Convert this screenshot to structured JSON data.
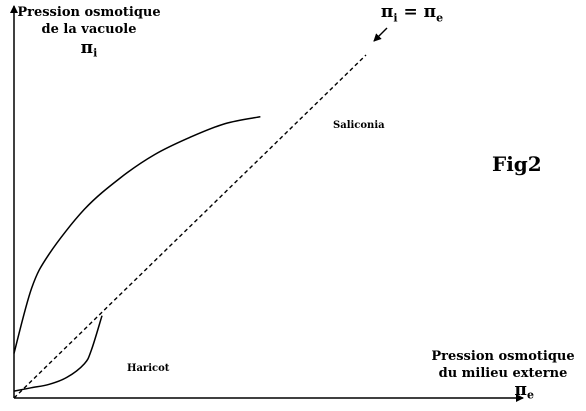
{
  "chart_data": {
    "type": "line",
    "title": "",
    "figure_label": "Fig2",
    "ylabel": {
      "line1": "Pression osmotique",
      "line2": "de la vacuole",
      "symbol": "π",
      "subscript": "i"
    },
    "xlabel": {
      "line1": "Pression osmotique",
      "line2": "du milieu externe",
      "symbol": "π",
      "subscript": "e"
    },
    "reference_line": {
      "label_symbol_left": "π",
      "label_sub_left": "i",
      "label_equals": " = ",
      "label_symbol_right": "π",
      "label_sub_right": "e",
      "style": "dashed",
      "x": [
        0,
        1
      ],
      "y": [
        0,
        1
      ]
    },
    "xlim": [
      0,
      1
    ],
    "ylim": [
      0,
      1
    ],
    "grid": false,
    "series": [
      {
        "name": "Saliconia",
        "x": [
          0,
          0.05,
          0.1,
          0.2,
          0.3,
          0.4,
          0.5,
          0.6,
          0.7
        ],
        "y": [
          0.13,
          0.32,
          0.42,
          0.55,
          0.64,
          0.71,
          0.76,
          0.8,
          0.82
        ]
      },
      {
        "name": "Haricot",
        "x": [
          0,
          0.05,
          0.1,
          0.15,
          0.2,
          0.22,
          0.25
        ],
        "y": [
          0.02,
          0.03,
          0.04,
          0.06,
          0.1,
          0.14,
          0.24
        ]
      }
    ],
    "colors": {
      "axes": "#000000",
      "curves": "#000000",
      "reference": "#000000"
    }
  }
}
